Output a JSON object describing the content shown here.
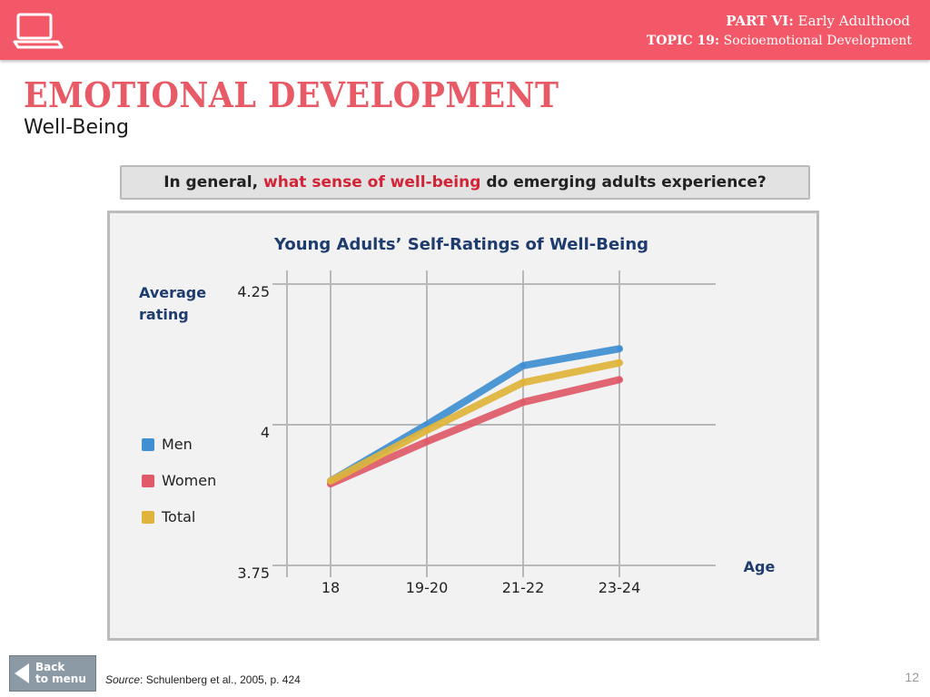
{
  "header": {
    "part_label": "PART VI:",
    "part_title": "Early Adulthood",
    "topic_label": "TOPIC 19:",
    "topic_title": "Socioemotional Development",
    "laptop_icon": "laptop-icon"
  },
  "slide": {
    "title": "EMOTIONAL DEVELOPMENT",
    "subtitle": "Well-Being",
    "question_pre": "In general,",
    "question_highlight": "what sense of well-being",
    "question_post": "do emerging adults experience?"
  },
  "chart_data": {
    "type": "line",
    "title": "Young Adults’ Self-Ratings of Well-Being",
    "ylabel": "Average rating",
    "xlabel": "Age",
    "categories": [
      "18",
      "19-20",
      "21-22",
      "23-24"
    ],
    "ylim": [
      3.75,
      4.25
    ],
    "yticks": [
      "4.25",
      "4",
      "3.75"
    ],
    "grid": true,
    "legend_position": "left",
    "series": [
      {
        "name": "Men",
        "color": "#3f8fd2",
        "values": [
          3.9,
          4.0,
          4.105,
          4.135
        ]
      },
      {
        "name": "Women",
        "color": "#e05a69",
        "values": [
          3.895,
          3.97,
          4.04,
          4.08
        ]
      },
      {
        "name": "Total",
        "color": "#e0b43a",
        "values": [
          3.9,
          3.99,
          4.075,
          4.11
        ]
      }
    ]
  },
  "footer": {
    "back_label_1": "Back",
    "back_label_2": "to menu",
    "source_label": "Source",
    "source_text": ": Schulenberg et al., 2005, p. 424",
    "page_number": "12"
  }
}
